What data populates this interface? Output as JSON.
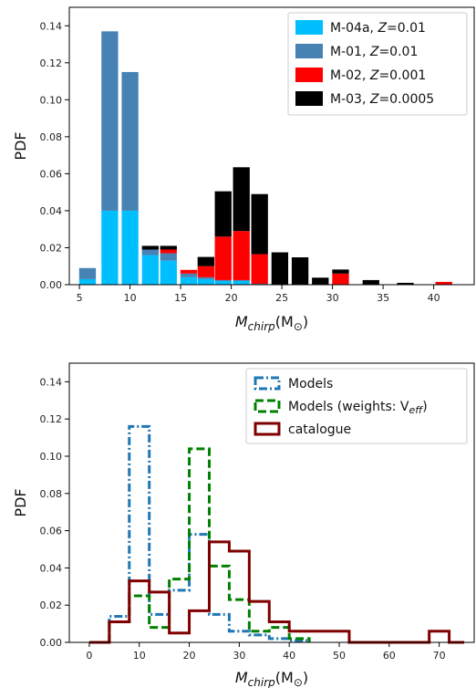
{
  "chart_data": [
    {
      "type": "bar",
      "stacked": true,
      "xlabel_parts": [
        "M",
        "chirp",
        "(M",
        "⊙",
        ")"
      ],
      "ylabel": "PDF",
      "xlim": [
        4,
        44
      ],
      "ylim": [
        0,
        0.15
      ],
      "xticks": [
        "5",
        "10",
        "15",
        "20",
        "25",
        "30",
        "35",
        "40"
      ],
      "yticks": [
        "0.00",
        "0.02",
        "0.04",
        "0.06",
        "0.08",
        "0.10",
        "0.12",
        "0.14"
      ],
      "legend_position": "top-right",
      "bin_centers": [
        5.8,
        8,
        10,
        12,
        13.8,
        15.8,
        17.5,
        19.2,
        21,
        22.8,
        24.8,
        26.8,
        28.8,
        30.8,
        33.8,
        37.2,
        41
      ],
      "series": [
        {
          "name": "M-04a, ",
          "zlabel": "Z",
          "zvalue": "=0.01",
          "color": "#00bfff",
          "values": [
            0.003,
            0.04,
            0.04,
            0.016,
            0.013,
            0.004,
            0.003,
            0.002,
            0.002,
            0,
            0,
            0,
            0,
            0,
            0,
            0,
            0
          ]
        },
        {
          "name": "M-01, ",
          "zlabel": "Z",
          "zvalue": "=0.01",
          "color": "#4682b4",
          "values": [
            0.006,
            0.097,
            0.075,
            0.003,
            0.004,
            0.002,
            0.001,
            0.0005,
            0.0005,
            0.0005,
            0,
            0,
            0,
            0,
            0,
            0,
            0
          ]
        },
        {
          "name": "M-02, ",
          "zlabel": "Z",
          "zvalue": "=0.001",
          "color": "#ff0000",
          "values": [
            0,
            0,
            0,
            0,
            0.002,
            0.002,
            0.006,
            0.0235,
            0.0265,
            0.016,
            0,
            0,
            0,
            0.006,
            0,
            0,
            0.0015
          ]
        },
        {
          "name": "M-03, ",
          "zlabel": "Z",
          "zvalue": "=0.0005",
          "color": "#000000",
          "values": [
            0,
            0,
            0,
            0.002,
            0.002,
            0,
            0.005,
            0.0245,
            0.0345,
            0.0325,
            0.0175,
            0.0148,
            0.0038,
            0.0022,
            0.0025,
            0.001,
            0
          ]
        }
      ]
    },
    {
      "type": "line",
      "step": true,
      "xlabel_parts": [
        "M",
        "chirp",
        "(M",
        "⊙",
        ")"
      ],
      "ylabel": "PDF",
      "xlim": [
        -4,
        77
      ],
      "ylim": [
        0,
        0.15
      ],
      "xticks": [
        "0",
        "10",
        "20",
        "30",
        "40",
        "50",
        "60",
        "70"
      ],
      "yticks": [
        "0.00",
        "0.02",
        "0.04",
        "0.06",
        "0.08",
        "0.10",
        "0.12",
        "0.14"
      ],
      "legend_position": "top-right",
      "series": [
        {
          "name": "Models",
          "color": "#1f77b4",
          "style": "dashdot",
          "edges": [
            4,
            8,
            12,
            16,
            20,
            24,
            28,
            32,
            36,
            40,
            44
          ],
          "values": [
            0.014,
            0.116,
            0.015,
            0.028,
            0.058,
            0.015,
            0.006,
            0.004,
            0.002,
            0.001
          ]
        },
        {
          "name": "Models (weights: V",
          "sub": "eff",
          "name_end": ")",
          "color": "#008000",
          "style": "dashed",
          "edges": [
            4,
            8,
            12,
            16,
            20,
            24,
            28,
            32,
            36,
            40,
            44
          ],
          "values": [
            0.011,
            0.025,
            0.008,
            0.034,
            0.104,
            0.041,
            0.023,
            0.006,
            0.008,
            0.002
          ]
        },
        {
          "name": "catalogue",
          "color": "#800000",
          "style": "solid",
          "edges": [
            0,
            4,
            8,
            12,
            16,
            20,
            24,
            28,
            32,
            36,
            40,
            44,
            48,
            52,
            56,
            60,
            64,
            68,
            72,
            75
          ],
          "values": [
            0,
            0.011,
            0.033,
            0.027,
            0.005,
            0.017,
            0.054,
            0.049,
            0.022,
            0.011,
            0.006,
            0.006,
            0.006,
            0,
            0,
            0,
            0,
            0.006,
            0
          ]
        }
      ]
    }
  ]
}
